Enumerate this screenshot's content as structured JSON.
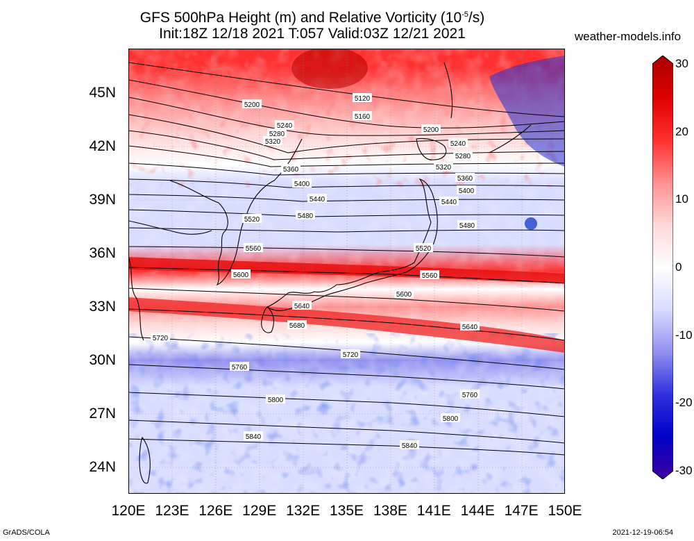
{
  "title": {
    "line1_prefix": "GFS 500hPa Height (m) and Relative Vorticity (10",
    "line1_exp": "-5",
    "line1_suffix": "/s)",
    "line2": "Init:18Z 12/18 2021 T:057 Valid:03Z 12/21 2021"
  },
  "site": "weather-models.info",
  "credit": "GrADS/COLA",
  "timestamp": "2021-12-19-06:54",
  "lat_ticks": [
    "45N",
    "42N",
    "39N",
    "36N",
    "33N",
    "30N",
    "27N",
    "24N"
  ],
  "lat_values": [
    45,
    42,
    39,
    36,
    33,
    30,
    27,
    24
  ],
  "lon_ticks": [
    "120E",
    "123E",
    "126E",
    "129E",
    "132E",
    "135E",
    "138E",
    "141E",
    "144E",
    "147E",
    "150E"
  ],
  "lon_values": [
    120,
    123,
    126,
    129,
    132,
    135,
    138,
    141,
    144,
    147,
    150
  ],
  "colorbar": {
    "labels": [
      "30",
      "20",
      "10",
      "0",
      "-10",
      "-20",
      "-30"
    ],
    "values": [
      30,
      20,
      10,
      0,
      -10,
      -20,
      -30
    ],
    "colors": [
      "#a80000",
      "#e00000",
      "#ff3030",
      "#ff9090",
      "#ffd8d8",
      "#ffffff",
      "#d8dcff",
      "#9090f0",
      "#3030e0",
      "#0000c8",
      "#4000a0"
    ]
  },
  "contour_labels": [
    "5120",
    "5160",
    "5200",
    "5200",
    "5240",
    "5240",
    "5280",
    "5280",
    "5320",
    "5320",
    "5360",
    "5360",
    "5400",
    "5400",
    "5440",
    "5440",
    "5480",
    "5480",
    "5520",
    "5520",
    "5560",
    "5560",
    "5600",
    "5600",
    "5640",
    "5640",
    "5680",
    "5720",
    "5720",
    "5760",
    "5760",
    "5800",
    "5800",
    "5840",
    "5840"
  ],
  "map": {
    "lon_range": [
      120,
      150
    ],
    "lat_range": [
      22.5,
      47.5
    ],
    "bands": [
      {
        "lat": 46.5,
        "value": 18
      },
      {
        "lat": 44.5,
        "value": 14
      },
      {
        "lat": 42.5,
        "value": 8
      },
      {
        "lat": 41.0,
        "value": 2
      },
      {
        "lat": 40.0,
        "value": -4
      },
      {
        "lat": 38.0,
        "value": -6
      },
      {
        "lat": 36.5,
        "value": -3
      },
      {
        "lat": 35.0,
        "value": 16
      },
      {
        "lat": 34.0,
        "value": -2
      },
      {
        "lat": 33.0,
        "value": 12
      },
      {
        "lat": 32.0,
        "value": 8
      },
      {
        "lat": 31.0,
        "value": 0
      },
      {
        "lat": 30.0,
        "value": -10
      },
      {
        "lat": 28.5,
        "value": -6
      },
      {
        "lat": 27.0,
        "value": -7
      },
      {
        "lat": 25.0,
        "value": -6
      },
      {
        "lat": 23.5,
        "value": -3
      }
    ]
  }
}
